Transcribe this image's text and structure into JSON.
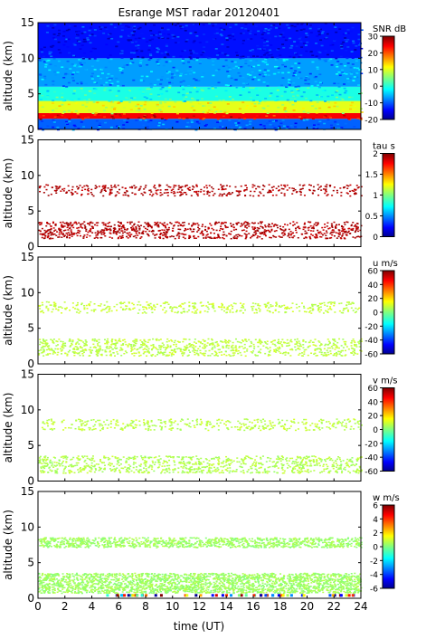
{
  "figure": {
    "title": "Esrange MST radar 20120401",
    "xlabel": "time (UT)",
    "ylabel": "altitude (km)",
    "x_ticks": [
      "0",
      "2",
      "4",
      "6",
      "8",
      "10",
      "12",
      "14",
      "16",
      "18",
      "20",
      "22",
      "24"
    ],
    "y_ticks": [
      "0",
      "5",
      "10",
      "15"
    ]
  },
  "chart_data": [
    {
      "type": "heatmap",
      "title": "Esrange MST radar 20120401",
      "ylabel": "altitude (km)",
      "xlim": [
        0,
        24
      ],
      "ylim": [
        0,
        15
      ],
      "colorbar": {
        "label": "SNR dB",
        "range": [
          -20,
          30
        ],
        "ticks": [
          "30",
          "20",
          "10",
          "0",
          "-10",
          "-20"
        ]
      },
      "fill": "dense",
      "layers": [
        {
          "alt_range": [
            0,
            1.5
          ],
          "level": 0.22
        },
        {
          "alt_range": [
            1.5,
            2.3
          ],
          "level": 0.88
        },
        {
          "alt_range": [
            2.3,
            4
          ],
          "level": 0.6
        },
        {
          "alt_range": [
            4,
            6
          ],
          "level": 0.4
        },
        {
          "alt_range": [
            6,
            10
          ],
          "level": 0.28
        },
        {
          "alt_range": [
            10,
            15
          ],
          "level": 0.14
        }
      ]
    },
    {
      "type": "heatmap",
      "ylabel": "altitude (km)",
      "xlim": [
        0,
        24
      ],
      "ylim": [
        0,
        15
      ],
      "colorbar": {
        "label": "tau s",
        "range": [
          0,
          2
        ],
        "ticks": [
          "2",
          "1.5",
          "1",
          "0.5",
          "0"
        ]
      },
      "fill": "sparse",
      "echo_layers": [
        {
          "alt_range": [
            1.2,
            3.6
          ],
          "level": 0.95
        },
        {
          "alt_range": [
            7.2,
            8.8
          ],
          "level": 0.95
        }
      ]
    },
    {
      "type": "heatmap",
      "ylabel": "altitude (km)",
      "xlim": [
        0,
        24
      ],
      "ylim": [
        0,
        15
      ],
      "colorbar": {
        "label": "u m/s",
        "range": [
          -60,
          60
        ],
        "ticks": [
          "60",
          "40",
          "20",
          "0",
          "-20",
          "-40",
          "-60"
        ]
      },
      "fill": "sparse",
      "echo_layers": [
        {
          "alt_range": [
            1.2,
            3.6
          ],
          "level": 0.56
        },
        {
          "alt_range": [
            7.2,
            8.8
          ],
          "level": 0.57
        }
      ]
    },
    {
      "type": "heatmap",
      "ylabel": "altitude (km)",
      "xlim": [
        0,
        24
      ],
      "ylim": [
        0,
        15
      ],
      "colorbar": {
        "label": "v m/s",
        "range": [
          -60,
          60
        ],
        "ticks": [
          "60",
          "40",
          "20",
          "0",
          "-20",
          "-40",
          "-60"
        ]
      },
      "fill": "sparse",
      "echo_layers": [
        {
          "alt_range": [
            1.2,
            3.6
          ],
          "level": 0.55
        },
        {
          "alt_range": [
            7.2,
            8.8
          ],
          "level": 0.56
        }
      ]
    },
    {
      "type": "heatmap",
      "xlabel": "time (UT)",
      "ylabel": "altitude (km)",
      "xlim": [
        0,
        24
      ],
      "ylim": [
        0,
        15
      ],
      "colorbar": {
        "label": "w m/s",
        "range": [
          -6,
          6
        ],
        "ticks": [
          "6",
          "4",
          "2",
          "0",
          "-2",
          "-4",
          "-6"
        ]
      },
      "fill": "medium",
      "echo_layers": [
        {
          "alt_range": [
            0.8,
            3.6
          ],
          "level": 0.53
        },
        {
          "alt_range": [
            7.2,
            8.6
          ],
          "level": 0.53
        }
      ]
    }
  ]
}
